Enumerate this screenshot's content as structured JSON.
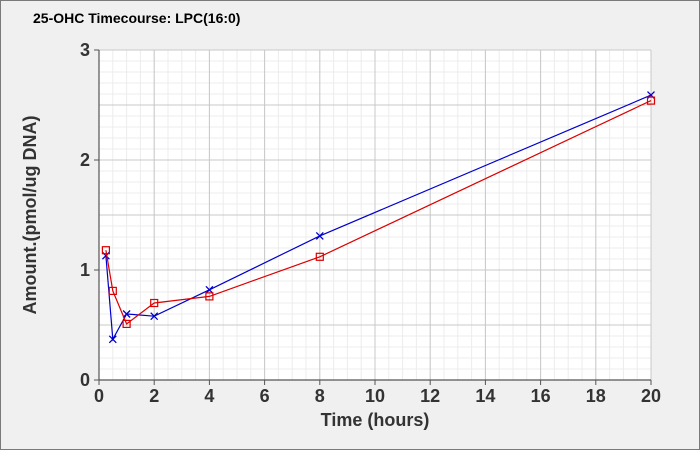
{
  "chart_data": {
    "type": "line",
    "title": "25-OHC Timecourse: LPC(16:0)",
    "xlabel": "Time (hours)",
    "ylabel": "Amount.(pmol/ug DNA)",
    "xlim": [
      0,
      20
    ],
    "ylim": [
      0,
      3
    ],
    "xticks": [
      0,
      2,
      4,
      6,
      8,
      10,
      12,
      14,
      16,
      18,
      20
    ],
    "yticks": [
      0,
      1,
      2,
      3
    ],
    "grid": true,
    "legend": "none",
    "series": [
      {
        "color": "#0000cc",
        "marker": "x",
        "x": [
          0.25,
          0.5,
          1,
          2,
          4,
          8,
          20
        ],
        "y": [
          1.13,
          0.37,
          0.6,
          0.58,
          0.82,
          1.31,
          2.59
        ]
      },
      {
        "color": "#dd0000",
        "marker": "square",
        "x": [
          0.25,
          0.5,
          1,
          2,
          4,
          8,
          20
        ],
        "y": [
          1.18,
          0.81,
          0.51,
          0.7,
          0.76,
          1.12,
          2.54
        ]
      }
    ]
  }
}
